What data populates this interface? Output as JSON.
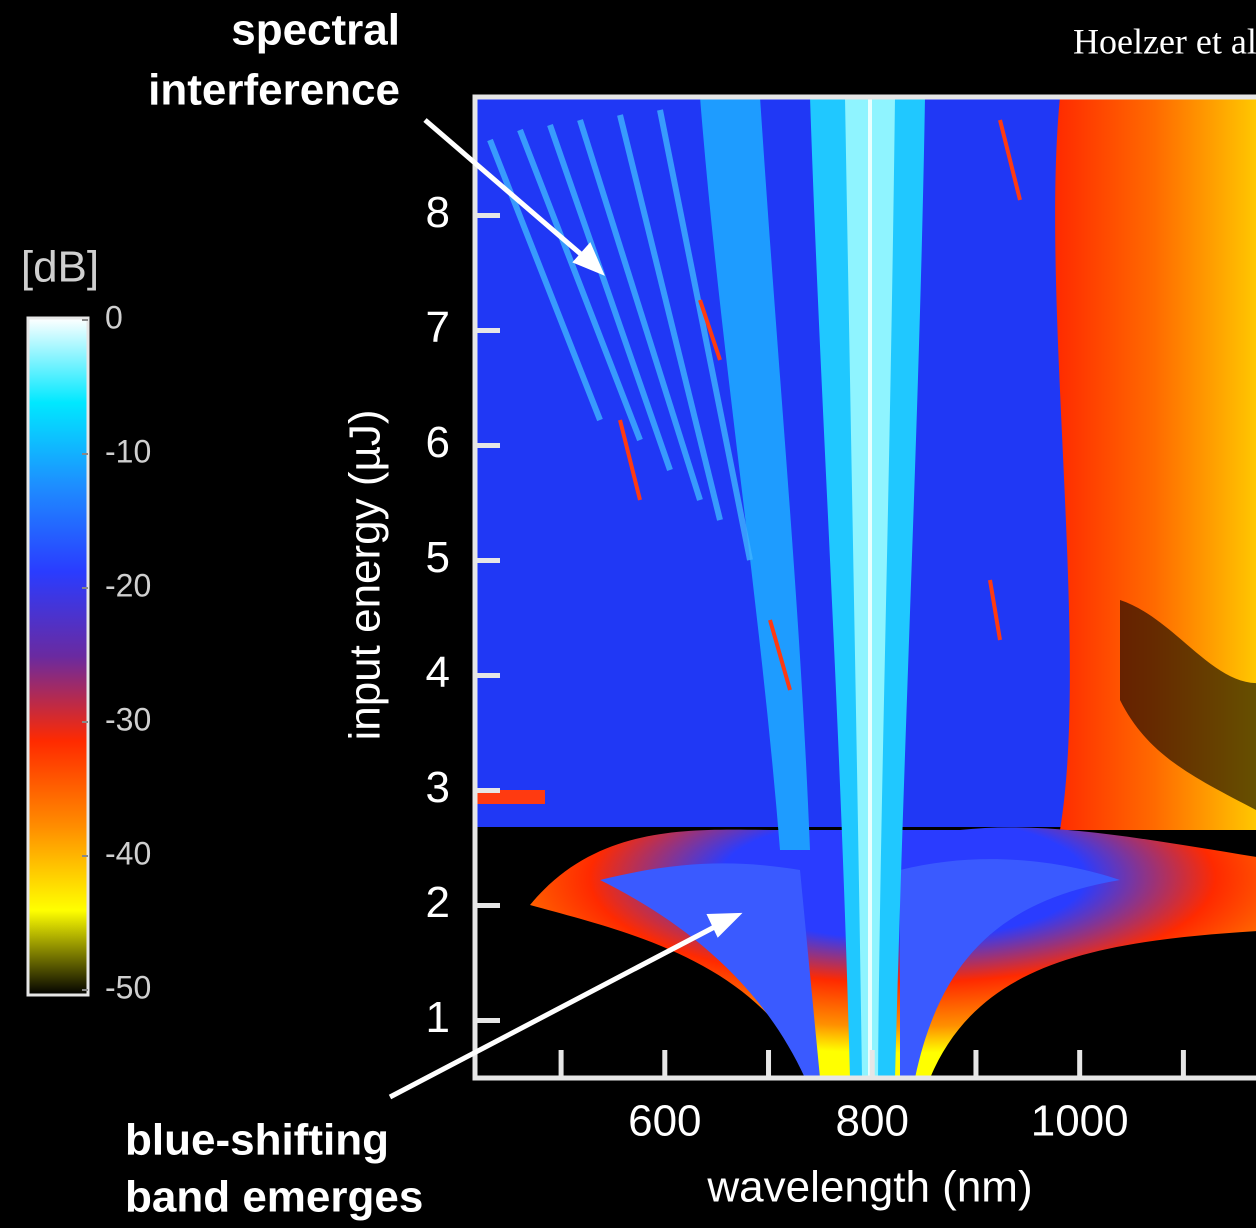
{
  "chart_data": {
    "type": "heatmap",
    "source": "Hoelzer et al.",
    "x_label": "wavelength (nm)",
    "y_label": "input energy (µJ)",
    "xlim": [
      417,
      1170
    ],
    "xticks": [
      600,
      800,
      1000
    ],
    "xminor_ticks": [
      500,
      700,
      900,
      1100
    ],
    "ylim": [
      0.5,
      9.03
    ],
    "yticks": [
      1,
      2,
      3,
      4,
      5,
      6,
      7,
      8
    ],
    "colorbar": {
      "label": "[dB]",
      "zlim": [
        -50,
        0
      ],
      "ticks": [
        0,
        -10,
        -20,
        -30,
        -40,
        -50
      ],
      "colormap": [
        "#000000",
        "#ffff00",
        "#ff8c00",
        "#ff2a00",
        "#6a2aa0",
        "#2a3cff",
        "#1e8cff",
        "#00e8ff",
        "#ffffff"
      ]
    },
    "annotations": [
      {
        "lines": [
          "spectral",
          "interference"
        ]
      },
      {
        "lines": [
          "blue-shifting",
          "band emerges"
        ]
      }
    ]
  }
}
